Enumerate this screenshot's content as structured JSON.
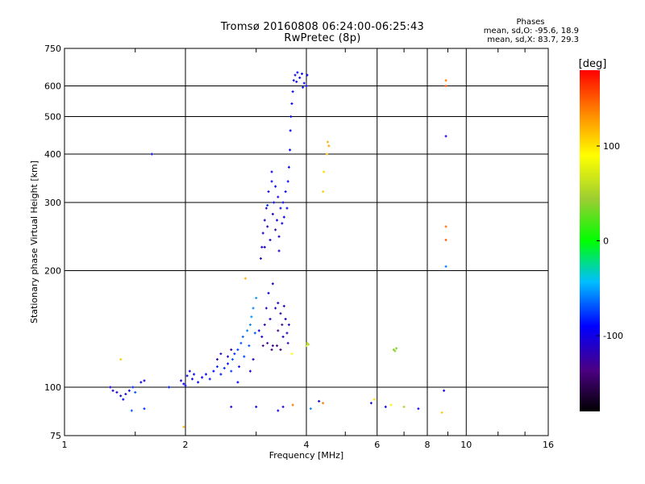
{
  "header": {
    "title_line1": "Tromsø 20160808 06:24:00-06:25:43",
    "title_line2": "RwPretec (8p)"
  },
  "phases_box": {
    "title": "Phases",
    "line_o": "mean, sd,O: -95.6, 18.9",
    "line_x": "mean, sd,X:  83.7, 29.3"
  },
  "colorbar": {
    "label": "[deg]",
    "ticks": [
      {
        "value": 100,
        "label": "100"
      },
      {
        "value": 0,
        "label": "0"
      },
      {
        "value": -100,
        "label": "-100"
      }
    ],
    "range": [
      -180,
      180
    ]
  },
  "chart_data": {
    "type": "scatter",
    "title": "Tromsø 20160808 06:24:00-06:25:43",
    "subtitle": "RwPretec (8p)",
    "xlabel": "Frequency [MHz]",
    "ylabel": "Stationary phase Virtual Height [km]",
    "xscale": "log",
    "yscale": "log",
    "xlim": [
      1,
      16
    ],
    "ylim": [
      75,
      750
    ],
    "xticks": [
      1,
      2,
      4,
      6,
      8,
      10,
      16
    ],
    "xtick_labels": [
      "1",
      "2",
      "4",
      "6",
      "8",
      "10",
      "16"
    ],
    "yticks": [
      75,
      100,
      200,
      300,
      400,
      500,
      600,
      750
    ],
    "ytick_labels": [
      "75",
      "100",
      "200",
      "300",
      "400",
      "500",
      "600",
      "750"
    ],
    "grid": true,
    "color_scale": "phase in degrees, rainbow from -180 (black/purple) through 0 (green) to 180 (red)",
    "points": [
      {
        "x": 1.3,
        "y": 100,
        "p": -100
      },
      {
        "x": 1.32,
        "y": 98,
        "p": -105
      },
      {
        "x": 1.35,
        "y": 97,
        "p": -110
      },
      {
        "x": 1.38,
        "y": 95,
        "p": -100
      },
      {
        "x": 1.4,
        "y": 93,
        "p": -95
      },
      {
        "x": 1.42,
        "y": 96,
        "p": -100
      },
      {
        "x": 1.45,
        "y": 98,
        "p": -90
      },
      {
        "x": 1.48,
        "y": 100,
        "p": -80
      },
      {
        "x": 1.5,
        "y": 97,
        "p": -70
      },
      {
        "x": 1.55,
        "y": 103,
        "p": -100
      },
      {
        "x": 1.47,
        "y": 87,
        "p": -70
      },
      {
        "x": 1.58,
        "y": 104,
        "p": -100
      },
      {
        "x": 1.82,
        "y": 100,
        "p": -85
      },
      {
        "x": 1.95,
        "y": 104,
        "p": -100
      },
      {
        "x": 1.98,
        "y": 102,
        "p": -95
      },
      {
        "x": 2.0,
        "y": 101,
        "p": -90
      },
      {
        "x": 2.02,
        "y": 107,
        "p": -95
      },
      {
        "x": 2.05,
        "y": 110,
        "p": -100
      },
      {
        "x": 2.08,
        "y": 105,
        "p": -95
      },
      {
        "x": 2.1,
        "y": 108,
        "p": -100
      },
      {
        "x": 2.15,
        "y": 103,
        "p": -90
      },
      {
        "x": 2.2,
        "y": 106,
        "p": -95
      },
      {
        "x": 2.25,
        "y": 108,
        "p": -90
      },
      {
        "x": 2.3,
        "y": 105,
        "p": -85
      },
      {
        "x": 2.35,
        "y": 110,
        "p": -90
      },
      {
        "x": 2.4,
        "y": 113,
        "p": -80
      },
      {
        "x": 2.45,
        "y": 108,
        "p": -85
      },
      {
        "x": 2.5,
        "y": 112,
        "p": -80
      },
      {
        "x": 2.55,
        "y": 115,
        "p": -85
      },
      {
        "x": 2.6,
        "y": 110,
        "p": -75
      },
      {
        "x": 2.62,
        "y": 118,
        "p": -70
      },
      {
        "x": 2.65,
        "y": 122,
        "p": -80
      },
      {
        "x": 2.7,
        "y": 125,
        "p": -75
      },
      {
        "x": 2.72,
        "y": 113,
        "p": -85
      },
      {
        "x": 2.75,
        "y": 130,
        "p": -70
      },
      {
        "x": 2.78,
        "y": 135,
        "p": -65
      },
      {
        "x": 2.8,
        "y": 120,
        "p": -75
      },
      {
        "x": 2.85,
        "y": 140,
        "p": -60
      },
      {
        "x": 2.88,
        "y": 128,
        "p": -70
      },
      {
        "x": 2.9,
        "y": 145,
        "p": -60
      },
      {
        "x": 2.92,
        "y": 152,
        "p": -55
      },
      {
        "x": 2.95,
        "y": 160,
        "p": -60
      },
      {
        "x": 2.98,
        "y": 138,
        "p": -70
      },
      {
        "x": 3.0,
        "y": 170,
        "p": -55
      },
      {
        "x": 2.95,
        "y": 118,
        "p": -110
      },
      {
        "x": 2.9,
        "y": 110,
        "p": -105
      },
      {
        "x": 2.6,
        "y": 125,
        "p": -120
      },
      {
        "x": 2.55,
        "y": 120,
        "p": -115
      },
      {
        "x": 2.45,
        "y": 122,
        "p": -110
      },
      {
        "x": 2.4,
        "y": 118,
        "p": -120
      },
      {
        "x": 3.05,
        "y": 140,
        "p": -100
      },
      {
        "x": 3.1,
        "y": 135,
        "p": -110
      },
      {
        "x": 3.15,
        "y": 145,
        "p": -120
      },
      {
        "x": 3.2,
        "y": 130,
        "p": -130
      },
      {
        "x": 3.25,
        "y": 150,
        "p": -115
      },
      {
        "x": 3.3,
        "y": 128,
        "p": -125
      },
      {
        "x": 3.35,
        "y": 160,
        "p": -110
      },
      {
        "x": 3.4,
        "y": 140,
        "p": -130
      },
      {
        "x": 3.45,
        "y": 155,
        "p": -120
      },
      {
        "x": 3.5,
        "y": 135,
        "p": -110
      },
      {
        "x": 3.55,
        "y": 150,
        "p": -105
      },
      {
        "x": 3.6,
        "y": 130,
        "p": -120
      },
      {
        "x": 3.22,
        "y": 175,
        "p": -100
      },
      {
        "x": 3.3,
        "y": 185,
        "p": -105
      },
      {
        "x": 3.4,
        "y": 165,
        "p": -115
      },
      {
        "x": 3.48,
        "y": 145,
        "p": -125
      },
      {
        "x": 3.52,
        "y": 162,
        "p": -110
      },
      {
        "x": 3.28,
        "y": 125,
        "p": -140
      },
      {
        "x": 3.38,
        "y": 128,
        "p": -135
      },
      {
        "x": 3.45,
        "y": 125,
        "p": -130
      },
      {
        "x": 3.58,
        "y": 138,
        "p": -115
      },
      {
        "x": 3.12,
        "y": 128,
        "p": -135
      },
      {
        "x": 3.18,
        "y": 160,
        "p": -105
      },
      {
        "x": 3.62,
        "y": 145,
        "p": -110
      },
      {
        "x": 3.1,
        "y": 230,
        "p": -110
      },
      {
        "x": 3.12,
        "y": 250,
        "p": -105
      },
      {
        "x": 3.15,
        "y": 270,
        "p": -115
      },
      {
        "x": 3.18,
        "y": 290,
        "p": -110
      },
      {
        "x": 3.2,
        "y": 260,
        "p": -120
      },
      {
        "x": 3.22,
        "y": 320,
        "p": -105
      },
      {
        "x": 3.25,
        "y": 240,
        "p": -115
      },
      {
        "x": 3.28,
        "y": 340,
        "p": -100
      },
      {
        "x": 3.3,
        "y": 280,
        "p": -110
      },
      {
        "x": 3.32,
        "y": 300,
        "p": -95
      },
      {
        "x": 3.35,
        "y": 255,
        "p": -120
      },
      {
        "x": 3.38,
        "y": 270,
        "p": -100
      },
      {
        "x": 3.4,
        "y": 310,
        "p": -105
      },
      {
        "x": 3.42,
        "y": 245,
        "p": -110
      },
      {
        "x": 3.45,
        "y": 290,
        "p": -95
      },
      {
        "x": 3.48,
        "y": 265,
        "p": -100
      },
      {
        "x": 3.5,
        "y": 300,
        "p": -95
      },
      {
        "x": 3.52,
        "y": 275,
        "p": -90
      },
      {
        "x": 3.55,
        "y": 320,
        "p": -90
      },
      {
        "x": 3.58,
        "y": 290,
        "p": -95
      },
      {
        "x": 3.6,
        "y": 340,
        "p": -90
      },
      {
        "x": 3.08,
        "y": 215,
        "p": -115
      },
      {
        "x": 3.15,
        "y": 230,
        "p": -110
      },
      {
        "x": 3.42,
        "y": 225,
        "p": -105
      },
      {
        "x": 3.2,
        "y": 295,
        "p": -80
      },
      {
        "x": 3.35,
        "y": 330,
        "p": -95
      },
      {
        "x": 3.28,
        "y": 360,
        "p": -100
      },
      {
        "x": 3.62,
        "y": 370,
        "p": -90
      },
      {
        "x": 3.64,
        "y": 410,
        "p": -95
      },
      {
        "x": 3.65,
        "y": 460,
        "p": -90
      },
      {
        "x": 3.66,
        "y": 500,
        "p": -95
      },
      {
        "x": 3.68,
        "y": 540,
        "p": -90
      },
      {
        "x": 3.7,
        "y": 580,
        "p": -95
      },
      {
        "x": 3.72,
        "y": 620,
        "p": -90
      },
      {
        "x": 3.75,
        "y": 640,
        "p": -95
      },
      {
        "x": 3.8,
        "y": 650,
        "p": -90
      },
      {
        "x": 3.85,
        "y": 630,
        "p": -95
      },
      {
        "x": 3.9,
        "y": 645,
        "p": -90
      },
      {
        "x": 3.95,
        "y": 610,
        "p": -95
      },
      {
        "x": 4.0,
        "y": 600,
        "p": -90
      },
      {
        "x": 4.02,
        "y": 640,
        "p": -95
      },
      {
        "x": 3.92,
        "y": 595,
        "p": -85
      },
      {
        "x": 3.78,
        "y": 615,
        "p": -100
      },
      {
        "x": 3.68,
        "y": 122,
        "p": 90
      },
      {
        "x": 4.0,
        "y": 128,
        "p": 60
      },
      {
        "x": 4.05,
        "y": 129,
        "p": 55
      },
      {
        "x": 4.02,
        "y": 130,
        "p": 65
      },
      {
        "x": 4.4,
        "y": 320,
        "p": 110
      },
      {
        "x": 4.42,
        "y": 360,
        "p": 105
      },
      {
        "x": 4.5,
        "y": 400,
        "p": 115
      },
      {
        "x": 4.52,
        "y": 430,
        "p": 120
      },
      {
        "x": 4.55,
        "y": 420,
        "p": 125
      },
      {
        "x": 6.6,
        "y": 125,
        "p": 40
      },
      {
        "x": 6.7,
        "y": 126,
        "p": 35
      },
      {
        "x": 6.65,
        "y": 124,
        "p": 45
      },
      {
        "x": 8.9,
        "y": 600,
        "p": 150
      },
      {
        "x": 8.9,
        "y": 620,
        "p": 140
      },
      {
        "x": 8.9,
        "y": 260,
        "p": 145
      },
      {
        "x": 8.9,
        "y": 240,
        "p": 150
      },
      {
        "x": 8.9,
        "y": 445,
        "p": -100
      },
      {
        "x": 8.9,
        "y": 205,
        "p": -60
      },
      {
        "x": 1.65,
        "y": 400,
        "p": -95
      },
      {
        "x": 2.6,
        "y": 89,
        "p": -100
      },
      {
        "x": 3.0,
        "y": 89,
        "p": -95
      },
      {
        "x": 3.4,
        "y": 87,
        "p": -100
      },
      {
        "x": 3.5,
        "y": 89,
        "p": -105
      },
      {
        "x": 3.7,
        "y": 90,
        "p": 140
      },
      {
        "x": 4.1,
        "y": 88,
        "p": -60
      },
      {
        "x": 4.3,
        "y": 92,
        "p": -100
      },
      {
        "x": 4.4,
        "y": 91,
        "p": 140
      },
      {
        "x": 5.8,
        "y": 91,
        "p": -100
      },
      {
        "x": 5.9,
        "y": 93,
        "p": 100
      },
      {
        "x": 6.3,
        "y": 89,
        "p": -95
      },
      {
        "x": 6.5,
        "y": 90,
        "p": 95
      },
      {
        "x": 7.0,
        "y": 89,
        "p": 50
      },
      {
        "x": 7.6,
        "y": 88,
        "p": -100
      },
      {
        "x": 8.7,
        "y": 86,
        "p": 110
      },
      {
        "x": 8.8,
        "y": 98,
        "p": -100
      },
      {
        "x": 1.38,
        "y": 118,
        "p": 110
      },
      {
        "x": 1.58,
        "y": 88,
        "p": -80
      },
      {
        "x": 1.98,
        "y": 79,
        "p": 120
      },
      {
        "x": 2.7,
        "y": 103,
        "p": -90
      },
      {
        "x": 2.82,
        "y": 191,
        "p": 120
      }
    ]
  }
}
